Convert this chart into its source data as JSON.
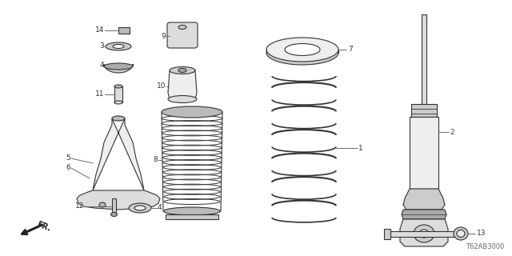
{
  "bg_color": "#ffffff",
  "line_color": "#333333",
  "diagram_code": "T62AB3000",
  "lw": 0.8,
  "fig_w": 6.4,
  "fig_h": 3.2
}
